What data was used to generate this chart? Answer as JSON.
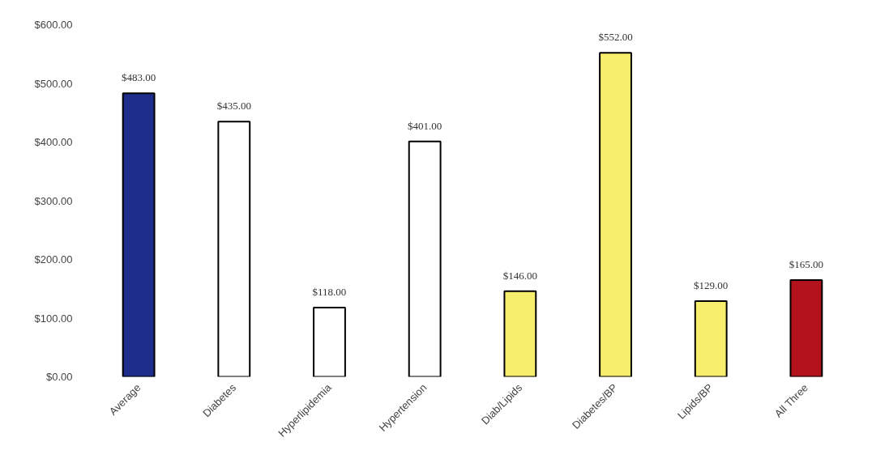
{
  "chart_data": {
    "type": "bar",
    "categories": [
      "Average",
      "Diabetes",
      "Hyperlipidemia",
      "Hypertension",
      "Diab/Lipids",
      "Diabetes/BP",
      "Lipids/BP",
      "All Three"
    ],
    "values": [
      483,
      435,
      118,
      401,
      146,
      552,
      129,
      165
    ],
    "value_labels": [
      "$483.00",
      "$435.00",
      "$118.00",
      "$401.00",
      "$146.00",
      "$552.00",
      "$129.00",
      "$165.00"
    ],
    "colors": [
      "#1f2d8a",
      "#ffffff",
      "#ffffff",
      "#ffffff",
      "#f7ee6e",
      "#f7ee6e",
      "#f7ee6e",
      "#b3121c"
    ],
    "ylim": [
      0,
      600
    ],
    "yticks": [
      {
        "value": 0,
        "label": "$0.00"
      },
      {
        "value": 100,
        "label": "$100.00"
      },
      {
        "value": 200,
        "label": "$200.00"
      },
      {
        "value": 300,
        "label": "$300.00"
      },
      {
        "value": 400,
        "label": "$400.00"
      },
      {
        "value": 500,
        "label": "$500.00"
      },
      {
        "value": 600,
        "label": "$600.00"
      }
    ],
    "grid": false
  }
}
